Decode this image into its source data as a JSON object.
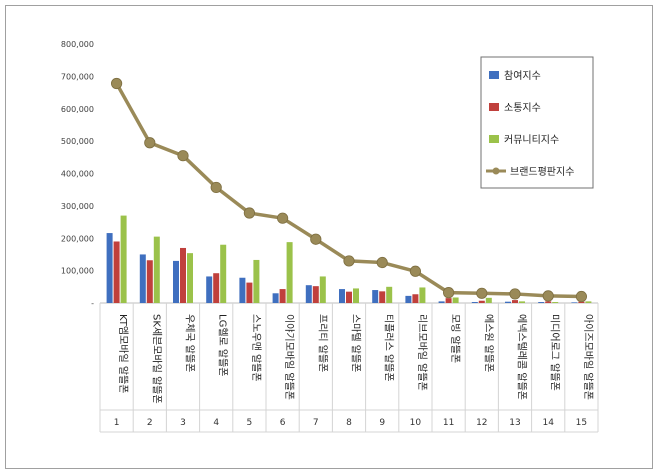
{
  "chart_data": {
    "type": "bar",
    "categories": [
      "KT엠모바일 알뜰폰",
      "SK세븐모바일 알뜰폰",
      "우체국 알뜰폰",
      "LG헬로 알뜰폰",
      "스노우맨 알뜰폰",
      "이야기모바일 알뜰폰",
      "프리티 알뜰폰",
      "스마텔 알뜰폰",
      "티플러스 알뜰폰",
      "리브모바일 알뜰폰",
      "모빙 알뜰폰",
      "에스원 알뜰폰",
      "에넥스텔레콤 알뜰폰",
      "미디어로그 알뜰폰",
      "아이즈모바일 알뜰폰"
    ],
    "ranks": [
      "1",
      "2",
      "3",
      "4",
      "5",
      "6",
      "7",
      "8",
      "9",
      "10",
      "11",
      "12",
      "13",
      "14",
      "15"
    ],
    "series": [
      {
        "name": "참여지수",
        "kind": "bar",
        "color": "#3f6fbf",
        "values": [
          216000,
          150000,
          130000,
          82000,
          78000,
          30000,
          55000,
          43000,
          40000,
          22000,
          5000,
          3000,
          4000,
          3000,
          2000
        ]
      },
      {
        "name": "소통지수",
        "kind": "bar",
        "color": "#c0403c",
        "values": [
          190000,
          132000,
          170000,
          92000,
          63000,
          43000,
          52000,
          35000,
          36000,
          27000,
          15000,
          7000,
          9000,
          5000,
          4000
        ]
      },
      {
        "name": "커뮤니티지수",
        "kind": "bar",
        "color": "#9bc24a",
        "values": [
          270000,
          205000,
          154000,
          180000,
          133000,
          188000,
          82000,
          45000,
          50000,
          48000,
          17000,
          16000,
          5000,
          3000,
          5000
        ]
      },
      {
        "name": "브랜드평판지수",
        "kind": "line",
        "color": "#9a8a58",
        "values": [
          678000,
          495000,
          455000,
          357000,
          278000,
          262000,
          197000,
          130000,
          125000,
          98000,
          32000,
          30000,
          28000,
          22000,
          20000
        ]
      }
    ],
    "ylim": [
      0,
      800000
    ],
    "yticks": [
      "-",
      "100,000",
      "200,000",
      "300,000",
      "400,000",
      "500,000",
      "600,000",
      "700,000",
      "800,000"
    ],
    "grid": false,
    "legend": "top-right"
  }
}
